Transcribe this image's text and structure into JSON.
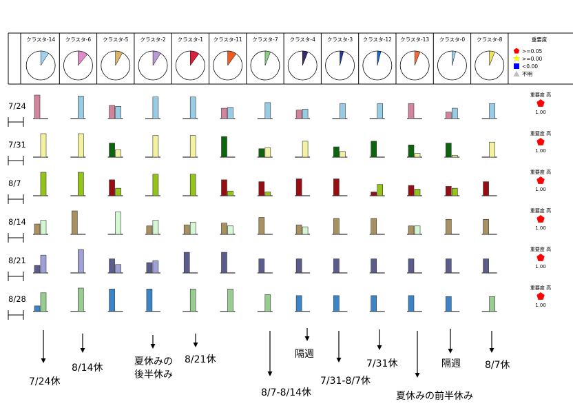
{
  "clusters": [
    {
      "label": "クラスタ-14",
      "pie_fraction": 0.09,
      "pie_color": "#9fd0ec"
    },
    {
      "label": "クラスタ-6",
      "pie_fraction": 0.11,
      "pie_color": "#de8cc8"
    },
    {
      "label": "クラスタ-5",
      "pie_fraction": 0.08,
      "pie_color": "#dcb466"
    },
    {
      "label": "クラスタ-2",
      "pie_fraction": 0.09,
      "pie_color": "#b79ad6"
    },
    {
      "label": "クラスタ-1",
      "pie_fraction": 0.1,
      "pie_color": "#d8203c"
    },
    {
      "label": "クラスタ-11",
      "pie_fraction": 0.1,
      "pie_color": "#f05a1e"
    },
    {
      "label": "クラスタ-7",
      "pie_fraction": 0.06,
      "pie_color": "#8ed08a"
    },
    {
      "label": "クラスタ-4",
      "pie_fraction": 0.06,
      "pie_color": "#3c2a6c"
    },
    {
      "label": "クラスタ-3",
      "pie_fraction": 0.04,
      "pie_color": "#1a3ca0"
    },
    {
      "label": "クラスタ-12",
      "pie_fraction": 0.04,
      "pie_color": "#1a6cc8"
    },
    {
      "label": "クラスタ-13",
      "pie_fraction": 0.06,
      "pie_color": "#f06a3c"
    },
    {
      "label": "クラスタ-0",
      "pie_fraction": 0.04,
      "pie_color": "#9fd0ec"
    },
    {
      "label": "クラスタ-8",
      "pie_fraction": 0.06,
      "pie_color": "#f0e060"
    }
  ],
  "legend": {
    "title": "重要度",
    "items": [
      {
        "shape": "pentagon",
        "color": "#ff0000",
        "label": ">=0.05"
      },
      {
        "shape": "star",
        "color": "#ffff00",
        "label": ">=0.00"
      },
      {
        "shape": "square",
        "color": "#0000ff",
        "label": "<0.00"
      },
      {
        "shape": "triangle",
        "color": "#c0c0c0",
        "label": "不明"
      }
    ]
  },
  "rows": [
    {
      "label": "7/24",
      "importance_label": "重要度 高",
      "importance_value": "1.00",
      "light": "#98cbe6",
      "dark": "#d2849c"
    },
    {
      "label": "7/31",
      "importance_label": "重要度 高",
      "importance_value": "1.00",
      "light": "#f2f2a0",
      "dark": "#0c640c"
    },
    {
      "label": "8/7",
      "importance_label": "重要度 高",
      "importance_value": "1.00",
      "light": "#94c41c",
      "dark": "#960e12"
    },
    {
      "label": "8/14",
      "importance_label": "重要度 高",
      "importance_value": "1.00",
      "light": "#d4f8d4",
      "dark": "#a89060"
    },
    {
      "label": "8/21",
      "importance_label": "重要度 高",
      "importance_value": "1.00",
      "light": "#9ea0d6",
      "dark": "#5c5c8c"
    },
    {
      "label": "8/28",
      "importance_label": "重要度 高",
      "importance_value": "1.00",
      "light": "#98cc90",
      "dark": "#3c84c8"
    }
  ],
  "bar_values": [
    [
      [
        1.0,
        0
      ],
      [
        0,
        0.96
      ],
      [
        0.56,
        0.52
      ],
      [
        0,
        0.92
      ],
      [
        0,
        0.92
      ],
      [
        0.44,
        0.48
      ],
      [
        0,
        0.68
      ],
      [
        0.36,
        0.4
      ],
      [
        0,
        0.64
      ],
      [
        0,
        0.64
      ],
      [
        0.64,
        0
      ],
      [
        0.28,
        0.44
      ],
      [
        0,
        0.64
      ]
    ],
    [
      [
        0,
        1.0
      ],
      [
        0,
        1.0
      ],
      [
        0.6,
        0.32
      ],
      [
        0,
        0.92
      ],
      [
        0,
        0.92
      ],
      [
        0.88,
        0
      ],
      [
        0.36,
        0.4
      ],
      [
        0,
        0.68
      ],
      [
        0.44,
        0.24
      ],
      [
        0.68,
        0
      ],
      [
        0.52,
        0.16
      ],
      [
        0.6,
        0.08
      ],
      [
        0,
        0.64
      ]
    ],
    [
      [
        0,
        1.0
      ],
      [
        0,
        1.0
      ],
      [
        0.68,
        0.32
      ],
      [
        0,
        0.92
      ],
      [
        0,
        0.92
      ],
      [
        0.68,
        0.2
      ],
      [
        0.6,
        0.16
      ],
      [
        0.72,
        0
      ],
      [
        0.72,
        0
      ],
      [
        0.16,
        0.48
      ],
      [
        0.44,
        0.28
      ],
      [
        0.4,
        0.32
      ],
      [
        0.6,
        0
      ]
    ],
    [
      [
        0.44,
        0.6
      ],
      [
        1.0,
        0
      ],
      [
        0,
        0.96
      ],
      [
        0.36,
        0.6
      ],
      [
        0.4,
        0.52
      ],
      [
        0.48,
        0.36
      ],
      [
        0.72,
        0
      ],
      [
        0.4,
        0.32
      ],
      [
        0.68,
        0
      ],
      [
        0.68,
        0
      ],
      [
        0.36,
        0.36
      ],
      [
        0.64,
        0
      ],
      [
        0.64,
        0
      ]
    ],
    [
      [
        0.32,
        0.76
      ],
      [
        0,
        1.0
      ],
      [
        0.6,
        0.36
      ],
      [
        0.44,
        0.52
      ],
      [
        0.88,
        0
      ],
      [
        0.88,
        0
      ],
      [
        0.6,
        0
      ],
      [
        0.6,
        0
      ],
      [
        0.6,
        0
      ],
      [
        0.6,
        0
      ],
      [
        0.6,
        0
      ],
      [
        0.6,
        0
      ],
      [
        0.6,
        0
      ]
    ],
    [
      [
        0.24,
        0.8
      ],
      [
        0,
        1.0
      ],
      [
        0.96,
        0
      ],
      [
        0.96,
        0
      ],
      [
        0,
        0.96
      ],
      [
        0,
        0.96
      ],
      [
        0,
        0.72
      ],
      [
        0.68,
        0
      ],
      [
        0.68,
        0
      ],
      [
        0.68,
        0
      ],
      [
        0.68,
        0
      ],
      [
        0.64,
        0
      ],
      [
        0,
        0.64
      ]
    ]
  ],
  "annotations": [
    {
      "text": "7/24休"
    },
    {
      "text": "8/14休"
    },
    {
      "text": "夏休みの\n後半休み"
    },
    {
      "text": "8/21休"
    },
    {
      "text": "8/7-8/14休"
    },
    {
      "text": "隔週"
    },
    {
      "text": "7/31-8/7休"
    },
    {
      "text": "7/31休"
    },
    {
      "text": "夏休みの前半休み"
    },
    {
      "text": "隔週"
    },
    {
      "text": "8/7休"
    }
  ]
}
